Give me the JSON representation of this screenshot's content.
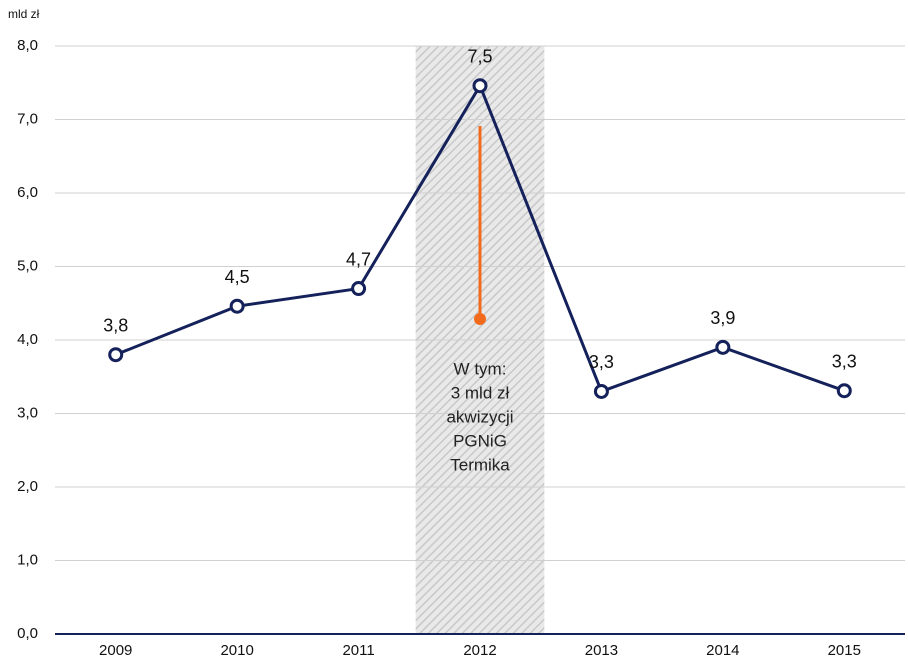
{
  "chart_data": {
    "type": "line",
    "unit_label": "mld zł",
    "categories": [
      "2009",
      "2010",
      "2011",
      "2012",
      "2013",
      "2014",
      "2015"
    ],
    "series": [
      {
        "color": "#14215a",
        "values": [
          3.8,
          4.46,
          4.7,
          7.46,
          3.3,
          3.9,
          3.31
        ],
        "value_labels": [
          "3,8",
          "4,5",
          "4,7",
          "7,5",
          "3,3",
          "3,9",
          "3,3"
        ]
      }
    ],
    "ylim": [
      0,
      8
    ],
    "yticks": [
      {
        "value": 0,
        "label": "0,0"
      },
      {
        "value": 1,
        "label": "1,0"
      },
      {
        "value": 2,
        "label": "2,0"
      },
      {
        "value": 3,
        "label": "3,0"
      },
      {
        "value": 4,
        "label": "4,0"
      },
      {
        "value": 5,
        "label": "5,0"
      },
      {
        "value": 6,
        "label": "6,0"
      },
      {
        "value": 7,
        "label": "7,0"
      },
      {
        "value": 8,
        "label": "8,0"
      }
    ],
    "grid": true,
    "highlight_category": 3,
    "annotation": [
      "W tym:",
      "3 mld zł",
      "akwizycji",
      "PGNiG",
      "Termika"
    ]
  }
}
